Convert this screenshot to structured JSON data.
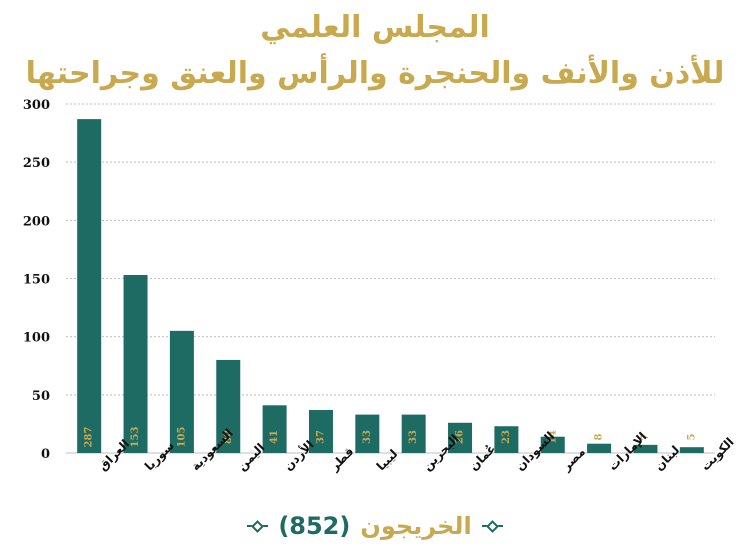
{
  "header": {
    "title_line1": "المجلس العلمي",
    "title_line2": "للأذن والأنف والحنجرة والرأس والعنق وجراحتها"
  },
  "footer": {
    "label": "الخريجون",
    "count": "(852)"
  },
  "colors": {
    "bar": "#1E6B63",
    "title": "#C9A94F",
    "label_text": "#C9A94F",
    "grid": "#BFBFBF"
  },
  "chart_data": {
    "type": "bar",
    "categories": [
      "العراق",
      "سوريا",
      "السعودية",
      "اليمن",
      "الأردن",
      "قطر",
      "ليبيا",
      "البحرين",
      "عُمان",
      "السودان",
      "مصر",
      "الإمارات",
      "لبنان",
      "الكويت"
    ],
    "values": [
      287,
      153,
      105,
      80,
      41,
      37,
      33,
      33,
      26,
      23,
      14,
      8,
      7,
      5
    ],
    "ylim": [
      0,
      300
    ],
    "yticks": [
      0,
      50,
      100,
      150,
      200,
      250,
      300
    ],
    "grid": true,
    "title": "المجلس العلمي للأذن والأنف والحنجرة والرأس والعنق وجراحتها",
    "xlabel": "",
    "ylabel": ""
  }
}
